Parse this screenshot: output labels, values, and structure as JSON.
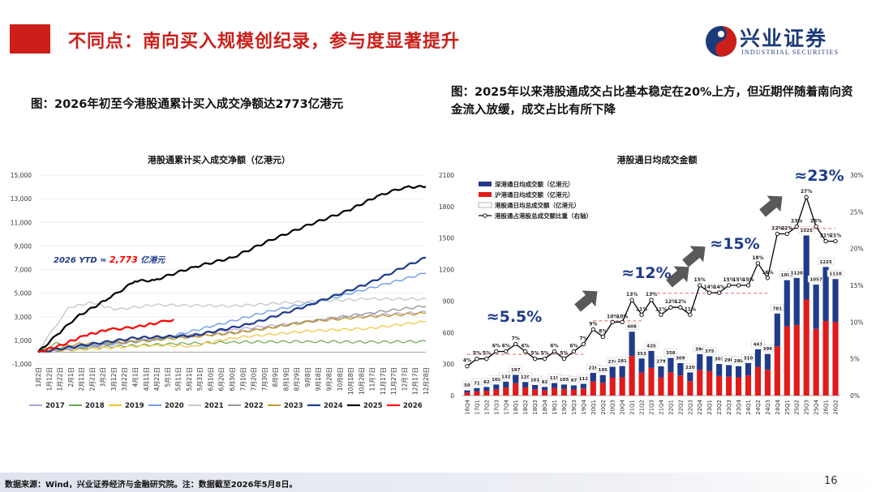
{
  "header": {
    "title": "不同点：南向买入规模创纪录，参与度显著提升",
    "logo_cn": "兴业证券",
    "logo_en": "INDUSTRIAL SECURITIES"
  },
  "captions": {
    "left": "图：2026年初至今港股通累计买入成交净额达2773亿港元",
    "right": "图：2025年以来港股通成交占比基本稳定在20%上方，但近期伴随着南向资金流入放缓，成交占比有所下降"
  },
  "footer": {
    "source": "数据来源：Wind，兴业证券经济与金融研究院。注：数据截至2026年5月8日。",
    "page": "16"
  },
  "chart_data": [
    {
      "type": "line",
      "title": "港股通累计买入成交净额（亿港元）",
      "ylim": [
        -1000,
        15000
      ],
      "y_ticks": [
        "-1,000",
        "1,000",
        "3,000",
        "5,000",
        "7,000",
        "9,000",
        "11,000",
        "13,000",
        "15,000"
      ],
      "x_ticks": [
        "1月2日",
        "1月12日",
        "1月22日",
        "2月1日",
        "2月11日",
        "2月21日",
        "3月2日",
        "3月12日",
        "3月22日",
        "4月1日",
        "4月11日",
        "4月21日",
        "5月1日",
        "5月11日",
        "5月21日",
        "5月31日",
        "6月10日",
        "6月20日",
        "6月30日",
        "7月10日",
        "7月20日",
        "7月30日",
        "8月9日",
        "8月19日",
        "8月29日",
        "9月8日",
        "9月18日",
        "9月28日",
        "10月8日",
        "10月18日",
        "10月28日",
        "11月7日",
        "11月17日",
        "11月27日",
        "12月7日",
        "12月17日",
        "12月28日"
      ],
      "annotation": {
        "prefix": "2026 YTD ≈",
        "value": "2,773",
        "unit": "亿港元"
      },
      "legend_position": "bottom",
      "series": [
        {
          "name": "2017",
          "color": "#b79fd8",
          "width": 1.2,
          "x": [
            0,
            0.08,
            0.2,
            0.35,
            0.5,
            0.65,
            0.8,
            0.9,
            1.0
          ],
          "y": [
            0,
            300,
            700,
            1300,
            1900,
            2400,
            3000,
            3200,
            3400
          ]
        },
        {
          "name": "2018",
          "color": "#6aa84f",
          "width": 1.2,
          "x": [
            0,
            0.05,
            0.1,
            0.2,
            0.35,
            0.5,
            0.7,
            0.85,
            1.0
          ],
          "y": [
            0,
            800,
            300,
            500,
            700,
            850,
            900,
            850,
            900
          ]
        },
        {
          "name": "2019",
          "color": "#f1c232",
          "width": 1.2,
          "x": [
            0,
            0.1,
            0.3,
            0.4,
            0.5,
            0.7,
            0.85,
            1.0
          ],
          "y": [
            0,
            200,
            600,
            500,
            1200,
            1800,
            2000,
            2600
          ]
        },
        {
          "name": "2020",
          "color": "#6d9eeb",
          "width": 1.4,
          "x": [
            0,
            0.1,
            0.3,
            0.45,
            0.6,
            0.75,
            0.9,
            1.0
          ],
          "y": [
            0,
            500,
            1000,
            2200,
            3500,
            4500,
            5800,
            6700
          ]
        },
        {
          "name": "2021",
          "color": "#c9c9c9",
          "width": 1.4,
          "x": [
            0,
            0.04,
            0.08,
            0.14,
            0.2,
            0.3,
            0.5,
            0.7,
            0.85,
            1.0
          ],
          "y": [
            0,
            2000,
            3800,
            4200,
            3600,
            4000,
            3900,
            4300,
            4500,
            4500
          ]
        },
        {
          "name": "2022",
          "color": "#999999",
          "width": 1.4,
          "x": [
            0,
            0.1,
            0.3,
            0.5,
            0.7,
            0.85,
            1.0
          ],
          "y": [
            0,
            300,
            1200,
            1600,
            2600,
            3300,
            3900
          ]
        },
        {
          "name": "2023",
          "color": "#c29b2e",
          "width": 1.4,
          "x": [
            0,
            0.1,
            0.25,
            0.4,
            0.55,
            0.7,
            0.85,
            1.0
          ],
          "y": [
            0,
            700,
            900,
            1300,
            1800,
            2600,
            3000,
            3300
          ]
        },
        {
          "name": "2024",
          "color": "#1f3b8c",
          "width": 2.2,
          "x": [
            0,
            0.1,
            0.25,
            0.4,
            0.55,
            0.7,
            0.85,
            0.95,
            1.0
          ],
          "y": [
            0,
            500,
            1200,
            1400,
            2400,
            4000,
            5800,
            7300,
            8000
          ]
        },
        {
          "name": "2025",
          "color": "#000000",
          "width": 2.2,
          "x": [
            0,
            0.05,
            0.1,
            0.18,
            0.25,
            0.3,
            0.4,
            0.5,
            0.6,
            0.7,
            0.8,
            0.88,
            0.95,
            1.0
          ],
          "y": [
            0,
            1500,
            3000,
            4500,
            6000,
            6100,
            7200,
            8000,
            9500,
            10800,
            12000,
            13300,
            14000,
            14000
          ]
        },
        {
          "name": "2026",
          "color": "#ff0000",
          "width": 2.2,
          "x": [
            0,
            0.06,
            0.12,
            0.18,
            0.25,
            0.31,
            0.35
          ],
          "y": [
            0,
            600,
            1400,
            1900,
            2100,
            2500,
            2773
          ]
        }
      ]
    },
    {
      "type": "bar",
      "title": "港股通日均成交金额",
      "categories": [
        "16Q4",
        "17Q1",
        "17Q2",
        "17Q3",
        "17Q4",
        "18Q1",
        "18Q2",
        "18Q3",
        "18Q4",
        "19Q1",
        "19Q2",
        "19Q3",
        "19Q4",
        "20Q1",
        "20Q2",
        "20Q3",
        "20Q4",
        "21Q1",
        "21Q2",
        "21Q3",
        "21Q4",
        "22Q1",
        "22Q2",
        "22Q3",
        "22Q4",
        "23Q1",
        "23Q2",
        "23Q3",
        "23Q4",
        "24Q1",
        "24Q2",
        "24Q3",
        "24Q4",
        "25Q1",
        "25Q2",
        "25Q3",
        "25Q4",
        "26Q1",
        "26Q2"
      ],
      "ylim": [
        0,
        2100
      ],
      "y_ticks": [
        "0",
        "300",
        "600",
        "900",
        "1200",
        "1500",
        "1800",
        "2100"
      ],
      "y2lim": [
        0,
        30
      ],
      "y2_ticks": [
        "0%",
        "5%",
        "10%",
        "15%",
        "20%",
        "25%",
        "30%"
      ],
      "total": [
        50,
        71,
        82,
        105,
        132,
        197,
        129,
        101,
        82,
        119,
        105,
        97,
        112,
        216,
        195,
        274,
        281,
        608,
        353,
        425,
        279,
        358,
        309,
        220,
        394,
        375,
        301,
        290,
        280,
        310,
        441,
        396,
        781,
        1099,
        1120,
        1525,
        1057,
        1225,
        1110
      ],
      "sz_share": [
        0.44,
        0.44,
        0.44,
        0.44,
        0.42,
        0.4,
        0.4,
        0.4,
        0.4,
        0.4,
        0.4,
        0.4,
        0.4,
        0.38,
        0.38,
        0.38,
        0.38,
        0.38,
        0.38,
        0.38,
        0.38,
        0.38,
        0.38,
        0.38,
        0.38,
        0.38,
        0.38,
        0.38,
        0.38,
        0.38,
        0.38,
        0.38,
        0.4,
        0.4,
        0.4,
        0.4,
        0.4,
        0.42,
        0.37
      ],
      "ratio": [
        4,
        5,
        5,
        6,
        6,
        7,
        6,
        5,
        5,
        6,
        5,
        6,
        7,
        9,
        8,
        10,
        10,
        13,
        11,
        13,
        11,
        12,
        12,
        11,
        15,
        14,
        14,
        15,
        15,
        15,
        18,
        16,
        22,
        22,
        23,
        27,
        23,
        21,
        21
      ],
      "ratio_labels": [
        "4%",
        "5%",
        "5%",
        "6%",
        "6%",
        "7%",
        "6%",
        "5%",
        "5%",
        "6%",
        "5%",
        "6%",
        "7%",
        "9%",
        "8%",
        "10%",
        "10%",
        "13%",
        "11%",
        "13%",
        "11%",
        "12%",
        "12%",
        "11%",
        "15%",
        "14%",
        "14%",
        "15%",
        "15%",
        "15%",
        "18%",
        "16%",
        "22%",
        "22%",
        "23%",
        "27%",
        "23%",
        "21%",
        "21%"
      ],
      "legend": [
        "深港通日均成交额（亿港元）",
        "沪港通日均成交额（亿港元）",
        "港股通日均总成交额（亿港元）",
        "港股通占港股总成交额比重（右轴）"
      ],
      "colors": {
        "shenzhen": "#1f3b8c",
        "shanghai": "#e01b1b",
        "line": "#000000"
      },
      "annotations": [
        "≈5.5%",
        "≈12%",
        "≈15%",
        "≈23%"
      ]
    }
  ]
}
